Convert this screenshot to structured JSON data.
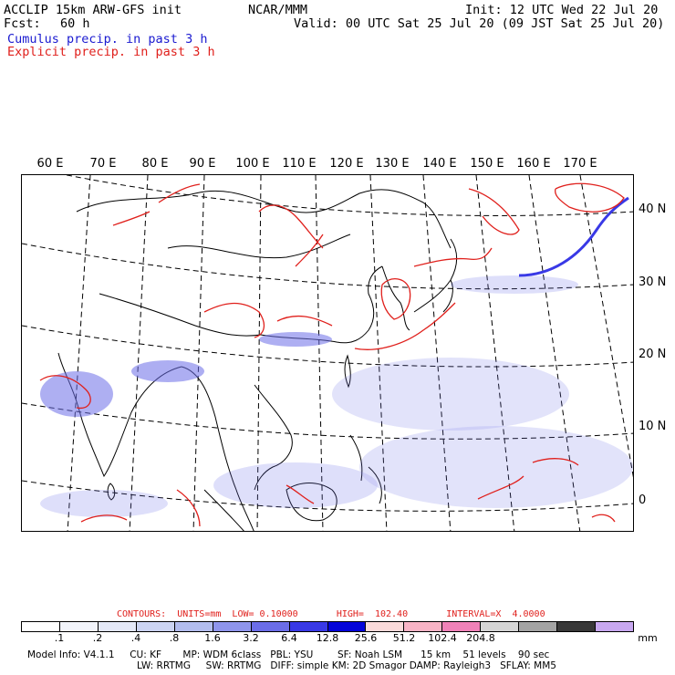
{
  "header": {
    "model_line": "ACCLIP 15km ARW-GFS init",
    "fcst_label": "Fcst:",
    "fcst_value": "60 h",
    "org": "NCAR/MMM",
    "init": "Init: 12 UTC Wed 22 Jul 20",
    "valid": "Valid: 00 UTC Sat 25 Jul 20 (09 JST Sat 25 Jul 20)",
    "legend_cumulus": "Cumulus precip. in past 3 h",
    "legend_explicit": "Explicit precip. in past 3 h"
  },
  "map": {
    "lon_labels": [
      "60 E",
      "70 E",
      "80 E",
      "90 E",
      "100 E",
      "110 E",
      "120 E",
      "130 E",
      "140 E",
      "150 E",
      "160 E",
      "170 E"
    ],
    "lat_labels": [
      "40 N",
      "30 N",
      "20 N",
      "10 N",
      "0"
    ]
  },
  "contours": {
    "text": "CONTOURS:  UNITS=mm  LOW= 0.10000       HIGH=  102.40       INTERVAL=X  4.0000"
  },
  "colorbar": {
    "colors": [
      "#ffffff",
      "#f2f4fb",
      "#e4e8f7",
      "#ccd4f2",
      "#b3bdee",
      "#8f95ec",
      "#6b6de8",
      "#3939e6",
      "#0404d8",
      "#fadada",
      "#f8b4c6",
      "#f082b8",
      "#d5d5d5",
      "#a3a3a3",
      "#383838",
      "#c8a8f0"
    ],
    "labels": [
      ".1",
      ".2",
      ".4",
      ".8",
      "1.6",
      "3.2",
      "6.4",
      "12.8",
      "25.6",
      "51.2",
      "102.4",
      "204.8"
    ],
    "unit": "mm"
  },
  "model_info": {
    "line1": "Model Info: V4.1.1     CU: KF       MP: WDM 6class   PBL: YSU        SF: Noah LSM      15 km    51 levels    90 sec",
    "line2": "LW: RRTMG     SW: RRTMG   DIFF: simple KM: 2D Smagor DAMP: Rayleigh3   SFLAY: MM5"
  }
}
